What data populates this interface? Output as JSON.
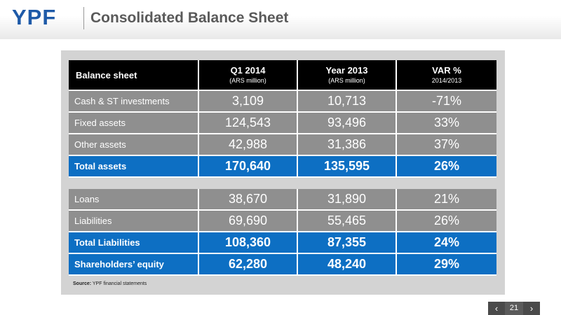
{
  "header": {
    "logo_text": "YPF",
    "title": "Consolidated Balance Sheet"
  },
  "table1": {
    "head": {
      "label": "Balance sheet",
      "cols": [
        {
          "main": "Q1 2014",
          "sub": "(ARS million)"
        },
        {
          "main": "Year 2013",
          "sub": "(ARS million)"
        },
        {
          "main": "VAR %",
          "sub": "2014/2013"
        }
      ]
    },
    "rows": [
      {
        "label": "Cash & ST investments",
        "q1_2014": "3,109",
        "year_2013": "10,713",
        "var": "-71%"
      },
      {
        "label": "Fixed assets",
        "q1_2014": "124,543",
        "year_2013": "93,496",
        "var": "33%"
      },
      {
        "label": "Other assets",
        "q1_2014": "42,988",
        "year_2013": "31,386",
        "var": "37%"
      },
      {
        "label": "Total assets",
        "q1_2014": "170,640",
        "year_2013": "135,595",
        "var": "26%"
      }
    ]
  },
  "table2": {
    "rows": [
      {
        "label": "Loans",
        "q1_2014": "38,670",
        "year_2013": "31,890",
        "var": "21%"
      },
      {
        "label": "Liabilities",
        "q1_2014": "69,690",
        "year_2013": "55,465",
        "var": "26%"
      },
      {
        "label": "Total Liabilities",
        "q1_2014": "108,360",
        "year_2013": "87,355",
        "var": "24%"
      },
      {
        "label": "Shareholders’ equity",
        "q1_2014": "62,280",
        "year_2013": "48,240",
        "var": "29%"
      }
    ]
  },
  "source": {
    "label": "Source:",
    "text": " YPF financial statements"
  },
  "pager": {
    "prev": "‹",
    "page": "21",
    "next": "›"
  },
  "colors": {
    "brand_blue": "#1e5aa8",
    "total_row_blue": "#0d6fc3",
    "data_row_gray": "#8f8f8f"
  }
}
